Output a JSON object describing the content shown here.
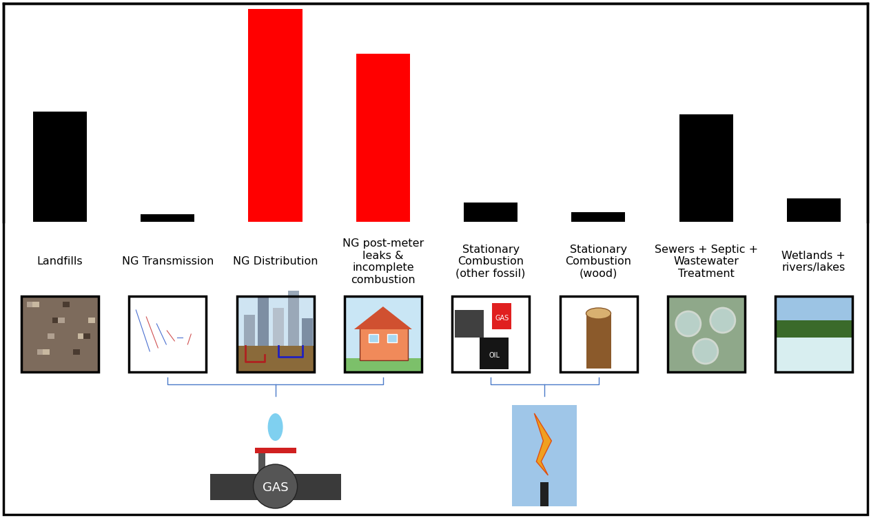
{
  "chart_data": {
    "type": "bar",
    "categories": [
      "Landfills",
      "NG Transmission",
      "NG Distribution",
      "NG post-meter\nleaks &\nincomplete\ncombustion",
      "Stationary\nCombustion\n(other fossil)",
      "Stationary\nCombustion\n(wood)",
      "Sewers + Septic +\nWastewater\nTreatment",
      "Wetlands +\nrivers/lakes"
    ],
    "values": [
      16.0,
      1.1,
      30.9,
      24.4,
      2.8,
      1.4,
      15.6,
      3.4
    ],
    "colors": [
      "#000000",
      "#000000",
      "#ff0000",
      "#ff0000",
      "#000000",
      "#000000",
      "#000000",
      "#000000"
    ],
    "ylim": [
      0,
      31.7
    ],
    "yticks": [],
    "tick_labels": false,
    "annotations": [
      "GAS",
      "OIL",
      "GAS"
    ]
  }
}
